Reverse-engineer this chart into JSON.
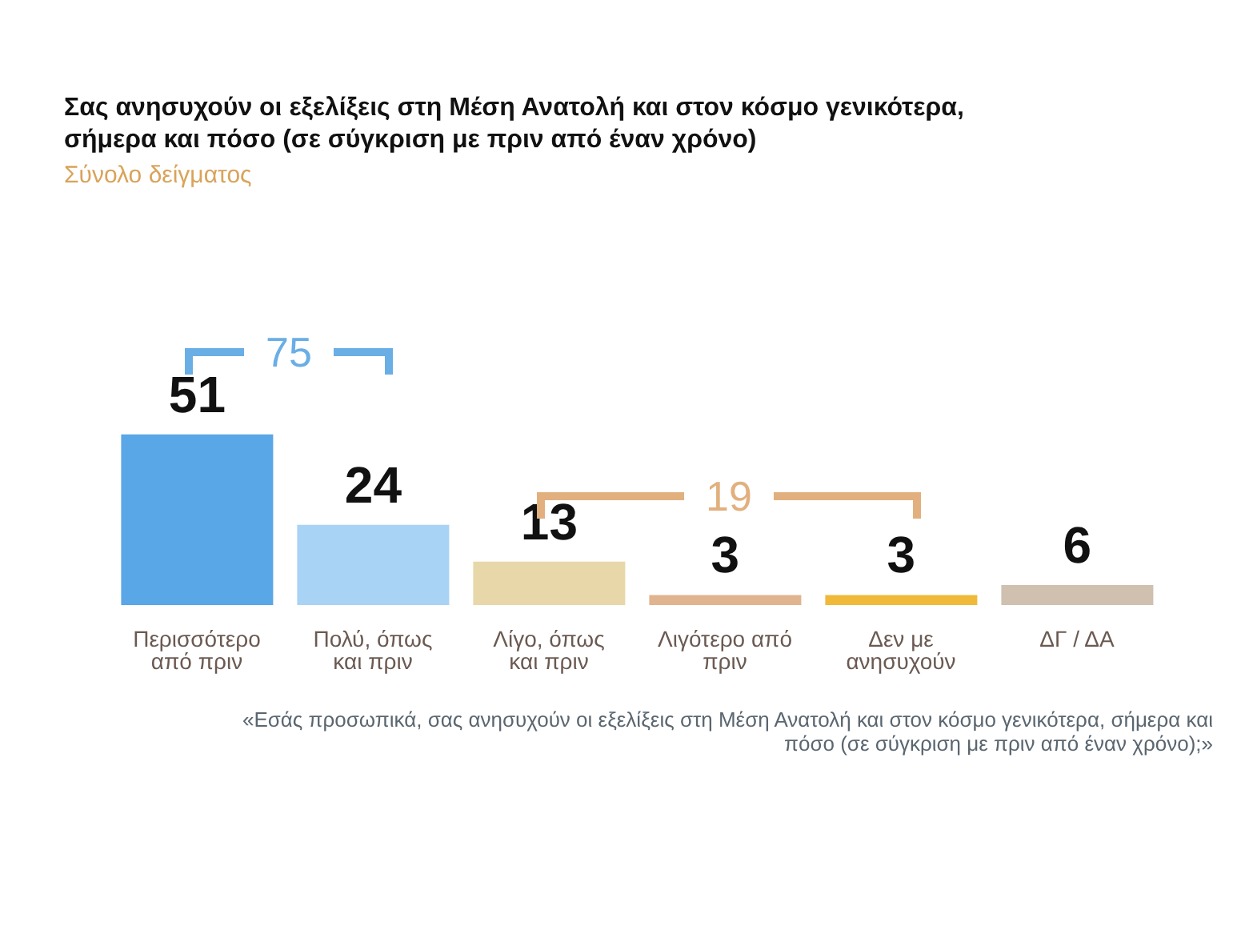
{
  "chart_data": {
    "type": "bar",
    "title": "Σας ανησυχούν οι εξελίξεις στη Μέση Ανατολή και στον κόσμο γενικότερα, σήμερα και πόσο  (σε σύγκριση με πριν από έναν χρόνο)",
    "subtitle": "Σύνολο δείγματος",
    "categories": [
      "Περισσότερο από πριν",
      "Πολύ, όπως και πριν",
      "Λίγο, όπως και πριν",
      "Λιγότερο από πριν",
      "Δεν με ανησυχούν",
      "ΔΓ / ΔΑ"
    ],
    "values": [
      51,
      24,
      13,
      3,
      3,
      6
    ],
    "colors": [
      "#5aa7e8",
      "#a9d3f5",
      "#e8d7a8",
      "#e0b48f",
      "#f0b93a",
      "#cfc0b0"
    ],
    "data_labels": true,
    "annotations": [
      "75",
      "19",
      "«Εσάς προσωπικά, σας ανησυχούν οι εξελίξεις στη Μέση Ανατολή και στον κόσμο γενικότερα, σήμερα και πόσο (σε σύγκριση με πριν από έναν χρόνο);»"
    ]
  }
}
